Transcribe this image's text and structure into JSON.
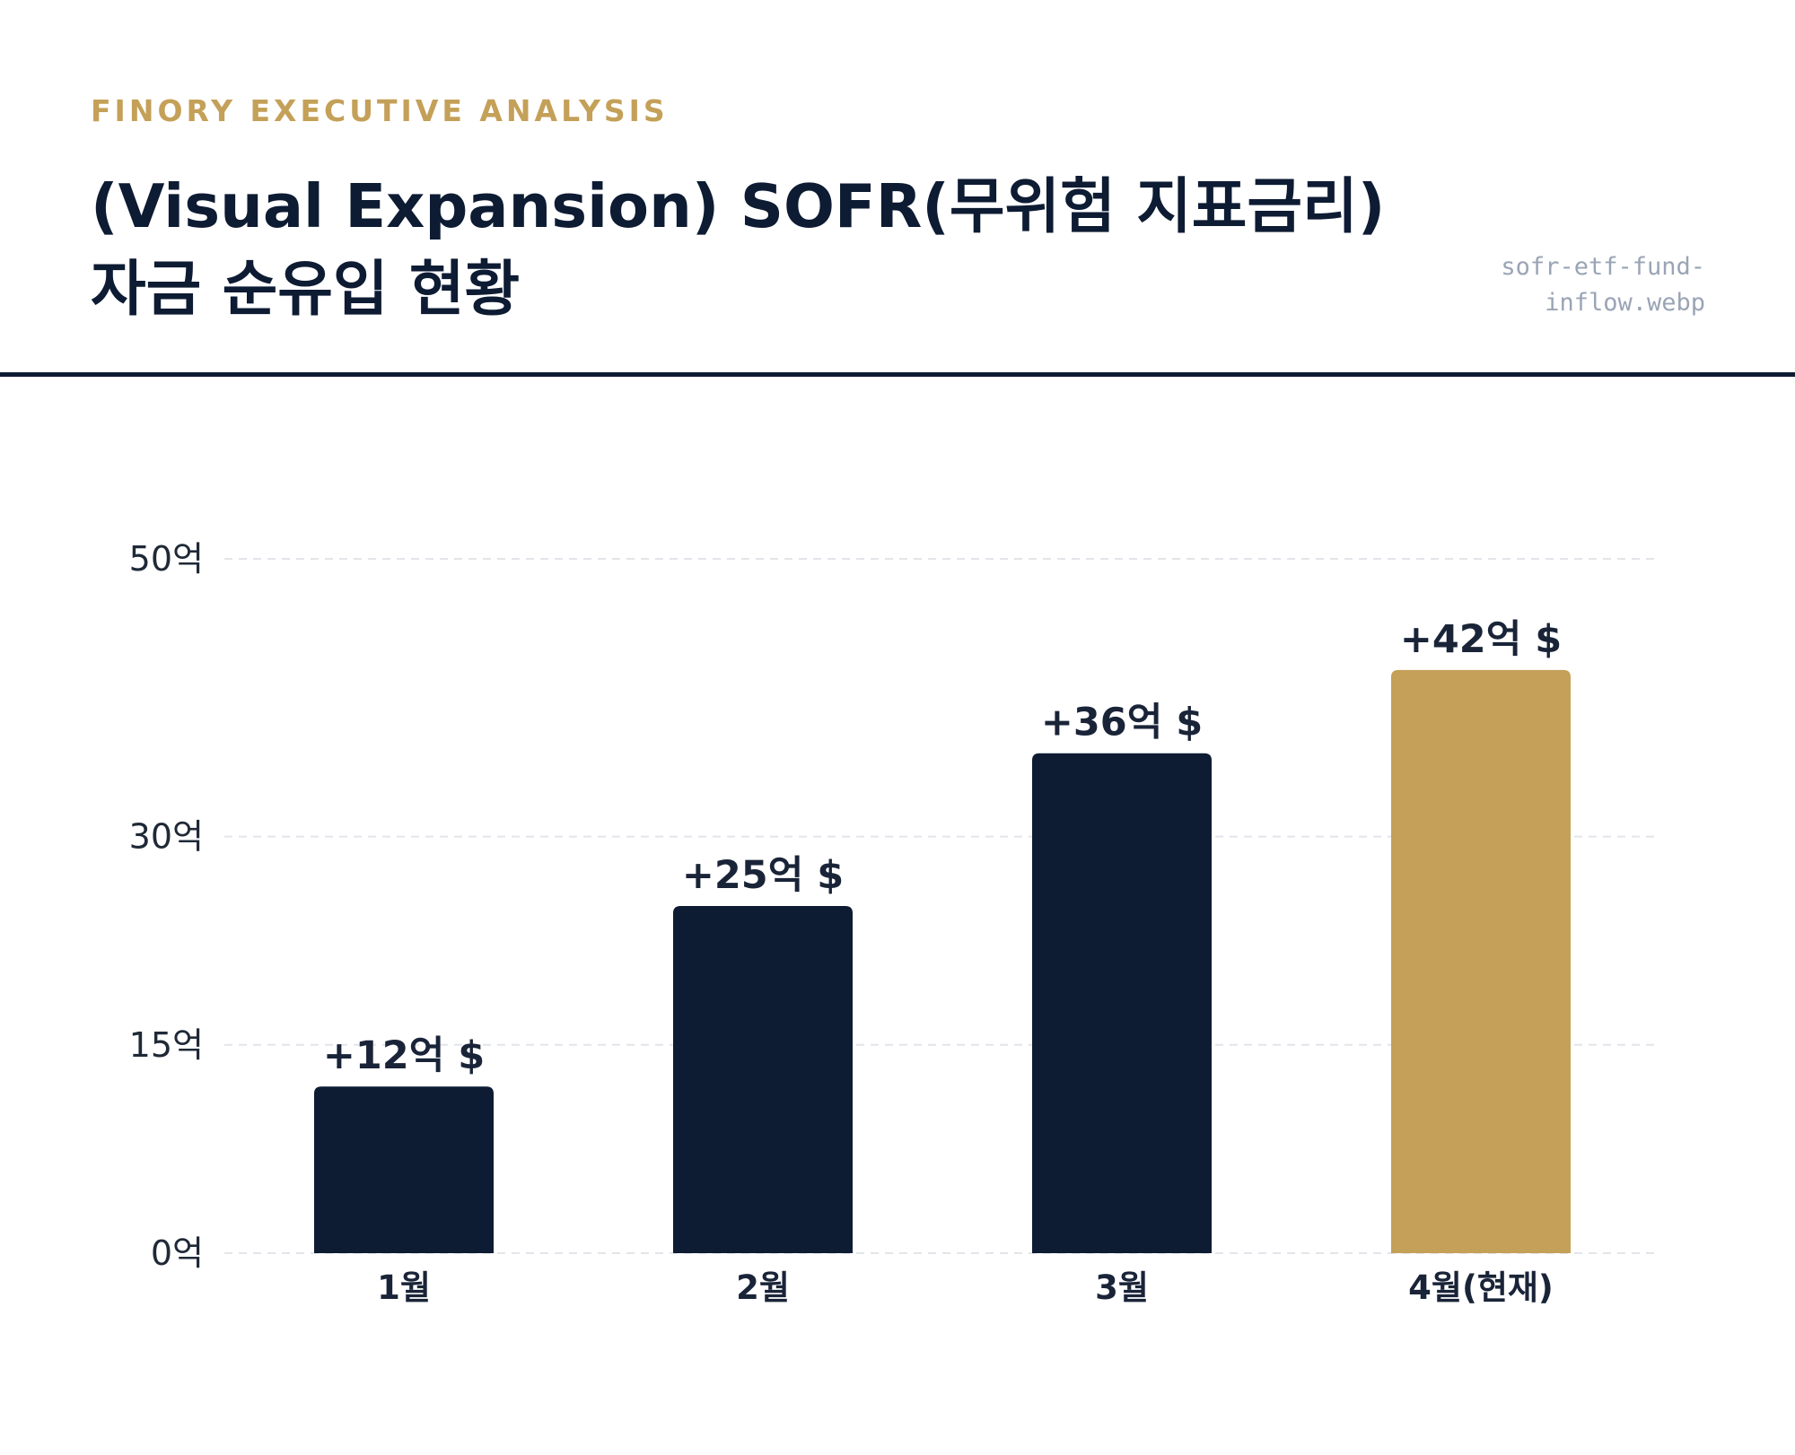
{
  "header": {
    "kicker": "FINORY EXECUTIVE ANALYSIS",
    "title_line1": "(Visual Expansion) SOFR(무위험 지표금리)",
    "title_line2": "자금 순유입 현황",
    "filename_line1": "sofr-etf-fund-",
    "filename_line2": "inflow.webp"
  },
  "colors": {
    "navy": "#0d1b33",
    "gold": "#c4a058",
    "grid": "#e2e5ea"
  },
  "chart_data": {
    "type": "bar",
    "categories": [
      "1월",
      "2월",
      "3월",
      "4월(현재)"
    ],
    "values": [
      12,
      25,
      36,
      42
    ],
    "value_labels": [
      "+12억 $",
      "+25억 $",
      "+36억 $",
      "+42억 $"
    ],
    "highlight_index": 3,
    "ylim": [
      0,
      50
    ],
    "yticks": [
      0,
      15,
      30,
      50
    ],
    "ytick_labels": [
      "0억",
      "15억",
      "30억",
      "50억"
    ],
    "grid": true,
    "title": "",
    "xlabel": "",
    "ylabel": ""
  }
}
